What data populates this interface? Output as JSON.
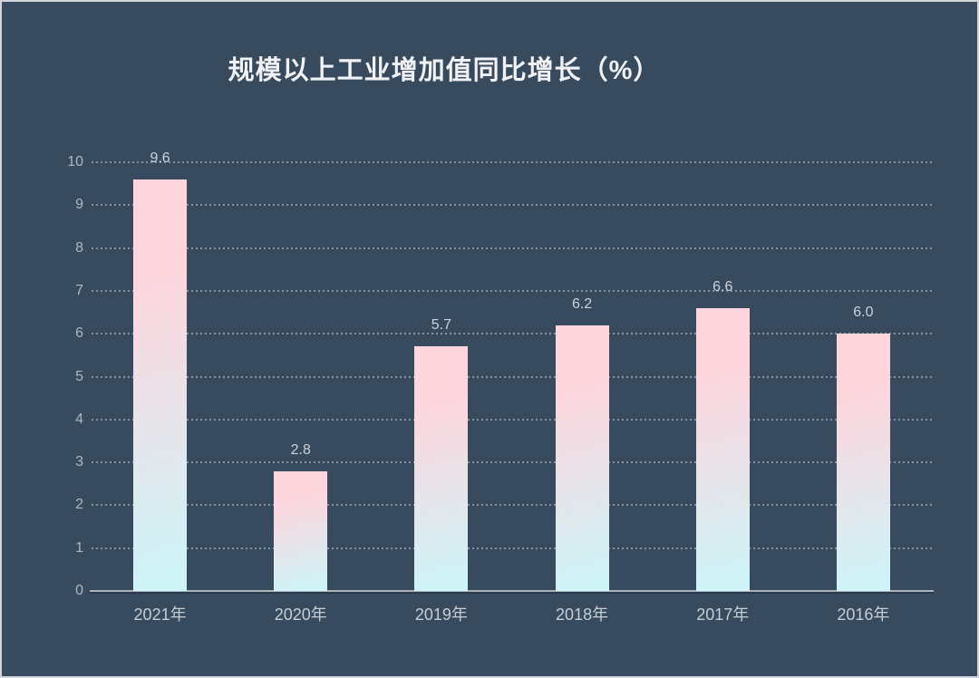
{
  "page": {
    "background_color": "#374A5E",
    "border_color": "#D2D6DB"
  },
  "chart_data": {
    "type": "bar",
    "title": "规模以上工业增加值同比增长（%）",
    "categories": [
      "2021年",
      "2020年",
      "2019年",
      "2018年",
      "2017年",
      "2016年"
    ],
    "values": [
      9.6,
      2.8,
      5.7,
      6.2,
      6.6,
      6.0
    ],
    "value_labels": [
      "9.6",
      "2.8",
      "5.7",
      "6.2",
      "6.6",
      "6.0"
    ],
    "xlabel": "",
    "ylabel": "",
    "ylim": [
      0,
      10
    ],
    "y_ticks": [
      0,
      1,
      2,
      3,
      4,
      5,
      6,
      7,
      8,
      9,
      10
    ],
    "grid": "horizontal-dotted",
    "legend": "none",
    "colors": {
      "title_text": "#F0F2F5",
      "tick_label_text": "#AEB7C2",
      "value_label_text": "#CBD2DA",
      "x_label_text": "#C6CDD5",
      "axis_line": "#ABB2BC",
      "gridline_dots": "#C8CEDA",
      "bar_gradient_top": "#FDD6DD",
      "bar_gradient_bottom": "#CEF4F8"
    }
  }
}
